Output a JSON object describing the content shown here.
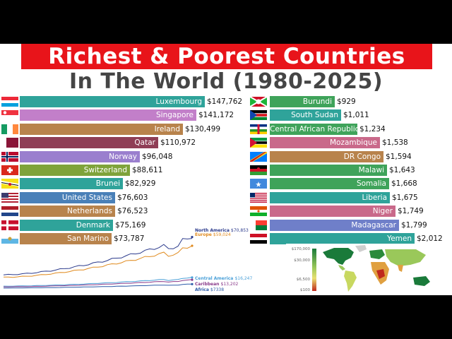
{
  "title": {
    "line1": "Richest & Poorest Countries",
    "line2": "In The World (1980-2025)"
  },
  "chart_data": [
    {
      "type": "bar",
      "name": "richest",
      "categories": [
        "Luxembourg",
        "Singapore",
        "Ireland",
        "Qatar",
        "Norway",
        "Switzerland",
        "Brunei",
        "United States",
        "Netherlands",
        "Denmark",
        "San Marino"
      ],
      "values": [
        147762,
        141172,
        130499,
        110972,
        96048,
        88611,
        82929,
        76603,
        76523,
        75169,
        73787
      ],
      "value_labels": [
        "$147,762",
        "$141,172",
        "$130,499",
        "$110,972",
        "$96,048",
        "$88,611",
        "$82,929",
        "$76,603",
        "$76,523",
        "$75,169",
        "$73,787"
      ],
      "colors": [
        "#2fa39a",
        "#c27fc9",
        "#b8834c",
        "#8f3e56",
        "#9a7fce",
        "#7fa33a",
        "#2fa39a",
        "#4a80b8",
        "#b8834c",
        "#2fa39a",
        "#b8834c"
      ],
      "flags": [
        "luxembourg-flag",
        "singapore-flag",
        "ireland-flag",
        "qatar-flag",
        "norway-flag",
        "switzerland-flag",
        "brunei-flag",
        "usa-flag",
        "netherlands-flag",
        "denmark-flag",
        "san-marino-flag"
      ]
    },
    {
      "type": "bar",
      "name": "poorest",
      "categories": [
        "Burundi",
        "South Sudan",
        "Central African Republic",
        "Mozambique",
        "DR Congo",
        "Malawi",
        "Somalia",
        "Liberia",
        "Niger",
        "Madagascar",
        "Yemen"
      ],
      "values": [
        929,
        1011,
        1234,
        1538,
        1594,
        1643,
        1668,
        1675,
        1749,
        1799,
        2012
      ],
      "value_labels": [
        "$929",
        "$1,011",
        "$1,234",
        "$1,538",
        "$1,594",
        "$1,643",
        "$1,668",
        "$1,675",
        "$1,749",
        "$1,799",
        "$2,012"
      ],
      "colors": [
        "#3fa35a",
        "#2fa39a",
        "#3fa35a",
        "#c9698a",
        "#b8834c",
        "#3fa35a",
        "#3fa35a",
        "#2fa39a",
        "#c9698a",
        "#6f7fc9",
        "#2fa39a"
      ],
      "flags": [
        "burundi-flag",
        "south-sudan-flag",
        "car-flag",
        "mozambique-flag",
        "dr-congo-flag",
        "malawi-flag",
        "somalia-flag",
        "liberia-flag",
        "niger-flag",
        "madagascar-flag",
        "yemen-flag"
      ]
    },
    {
      "type": "line",
      "name": "regions",
      "series": [
        {
          "name": "North America",
          "label": "$70,853",
          "color": "#2b3a8c",
          "end": 70853
        },
        {
          "name": "Europe",
          "label": "$59,024",
          "color": "#e08a1e",
          "end": 59024
        },
        {
          "name": "Central America",
          "label": "$16,247",
          "color": "#4aa0d8",
          "end": 16247
        },
        {
          "name": "Caribbean",
          "label": "$13,202",
          "color": "#8a3a8a",
          "end": 13202
        },
        {
          "name": "Africa",
          "label": "$7338",
          "color": "#2b5aa8",
          "end": 7338
        }
      ]
    },
    {
      "type": "heatmap",
      "name": "world-map",
      "legend_ticks": [
        "$170,000",
        "$30,000",
        "$6,500",
        "$100"
      ],
      "colors": {
        "high": "#1a7a3a",
        "mid": "#e8e070",
        "low": "#c0281c"
      }
    }
  ]
}
